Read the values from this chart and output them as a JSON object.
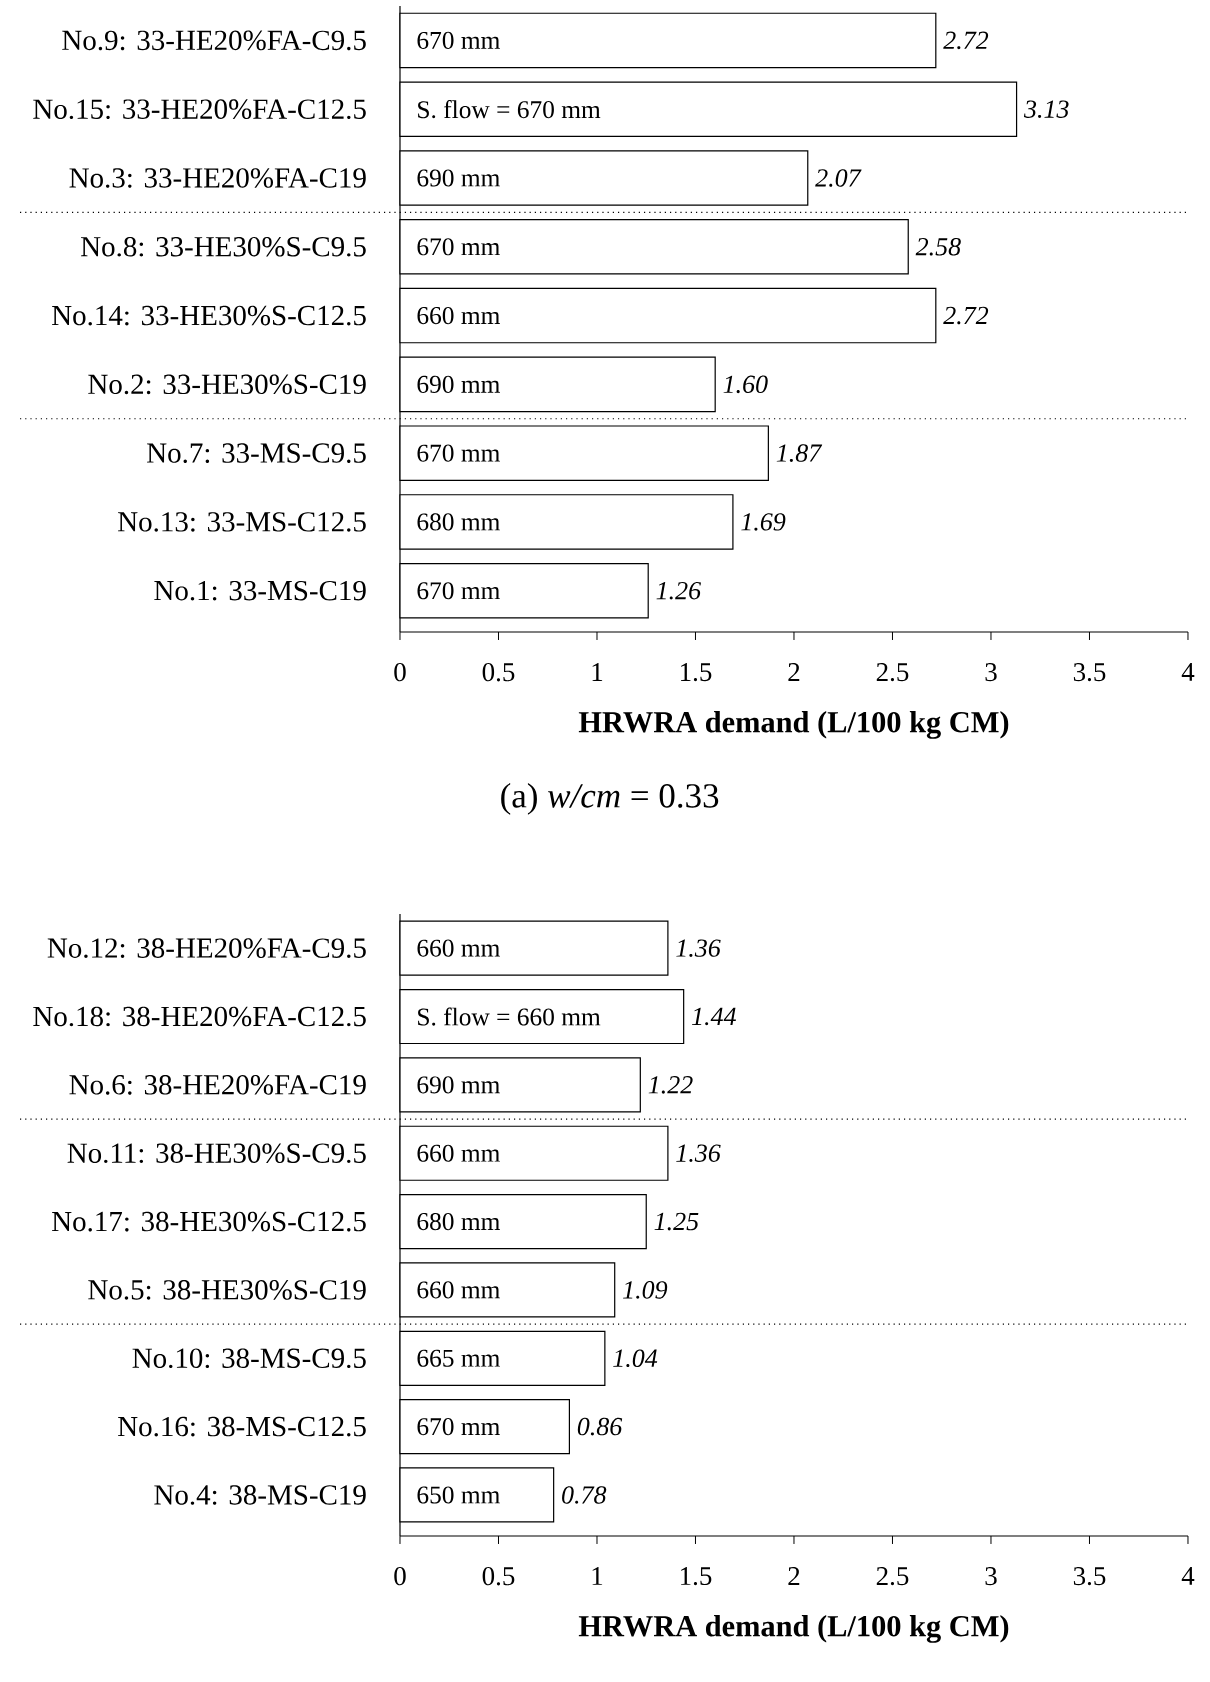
{
  "chart_data": [
    {
      "type": "bar",
      "orientation": "horizontal",
      "title": "(a) *w/cm* = 0.33",
      "xlabel": "HRWRA demand (L/100 kg CM)",
      "categories": [
        "No.9: 33-HE20%FA-C9.5",
        "No.15: 33-HE20%FA-C12.5",
        "No.3: 33-HE20%FA-C19",
        "No.8: 33-HE30%S-C9.5",
        "No.14: 33-HE30%S-C12.5",
        "No.2: 33-HE30%S-C19",
        "No.7: 33-MS-C9.5",
        "No.13: 33-MS-C12.5",
        "No.1: 33-MS-C19"
      ],
      "values": [
        2.72,
        3.13,
        2.07,
        2.58,
        2.72,
        1.6,
        1.87,
        1.69,
        1.26
      ],
      "value_labels": [
        "2.72",
        "3.13",
        "2.07",
        "2.58",
        "2.72",
        "1.60",
        "1.87",
        "1.69",
        "1.26"
      ],
      "color": "#ffffff",
      "xlim": [
        0,
        4
      ],
      "xticks": [
        0,
        0.5,
        1,
        1.5,
        2,
        2.5,
        3,
        3.5,
        4
      ],
      "annotations": [
        {
          "text": "670 mm",
          "y": "No.9: 33-HE20%FA-C9.5"
        },
        {
          "text": "S. flow = 670 mm",
          "y": "No.15: 33-HE20%FA-C12.5"
        },
        {
          "text": "690 mm",
          "y": "No.3: 33-HE20%FA-C19"
        },
        {
          "text": "670 mm",
          "y": "No.8: 33-HE30%S-C9.5"
        },
        {
          "text": "660 mm",
          "y": "No.14: 33-HE30%S-C12.5"
        },
        {
          "text": "690 mm",
          "y": "No.2: 33-HE30%S-C19"
        },
        {
          "text": "670 mm",
          "y": "No.7: 33-MS-C9.5"
        },
        {
          "text": "680 mm",
          "y": "No.13: 33-MS-C12.5"
        },
        {
          "text": "670 mm",
          "y": "No.1: 33-MS-C19"
        }
      ]
    },
    {
      "type": "bar",
      "orientation": "horizontal",
      "xlabel": "HRWRA demand (L/100 kg CM)",
      "categories": [
        "No.12: 38-HE20%FA-C9.5",
        "No.18: 38-HE20%FA-C12.5",
        "No.6: 38-HE20%FA-C19",
        "No.11: 38-HE30%S-C9.5",
        "No.17: 38-HE30%S-C12.5",
        "No.5: 38-HE30%S-C19",
        "No.10: 38-MS-C9.5",
        "No.16: 38-MS-C12.5",
        "No.4: 38-MS-C19"
      ],
      "values": [
        1.36,
        1.44,
        1.22,
        1.36,
        1.25,
        1.09,
        1.04,
        0.86,
        0.78
      ],
      "value_labels": [
        "1.36",
        "1.44",
        "1.22",
        "1.36",
        "1.25",
        "1.09",
        "1.04",
        "0.86",
        "0.78"
      ],
      "color": "#ffffff",
      "xlim": [
        0,
        4
      ],
      "xticks": [
        0,
        0.5,
        1,
        1.5,
        2,
        2.5,
        3,
        3.5,
        4
      ],
      "annotations": [
        {
          "text": "660 mm",
          "y": "No.12: 38-HE20%FA-C9.5"
        },
        {
          "text": "S. flow = 660 mm",
          "y": "No.18: 38-HE20%FA-C12.5"
        },
        {
          "text": "690 mm",
          "y": "No.6: 38-HE20%FA-C19"
        },
        {
          "text": "660 mm",
          "y": "No.11: 38-HE30%S-C9.5"
        },
        {
          "text": "680 mm",
          "y": "No.17: 38-HE30%S-C12.5"
        },
        {
          "text": "660 mm",
          "y": "No.5: 38-HE30%S-C19"
        },
        {
          "text": "665 mm",
          "y": "No.10: 38-MS-C9.5"
        },
        {
          "text": "670 mm",
          "y": "No.16: 38-MS-C12.5"
        },
        {
          "text": "650 mm",
          "y": "No.4: 38-MS-C19"
        }
      ]
    }
  ]
}
